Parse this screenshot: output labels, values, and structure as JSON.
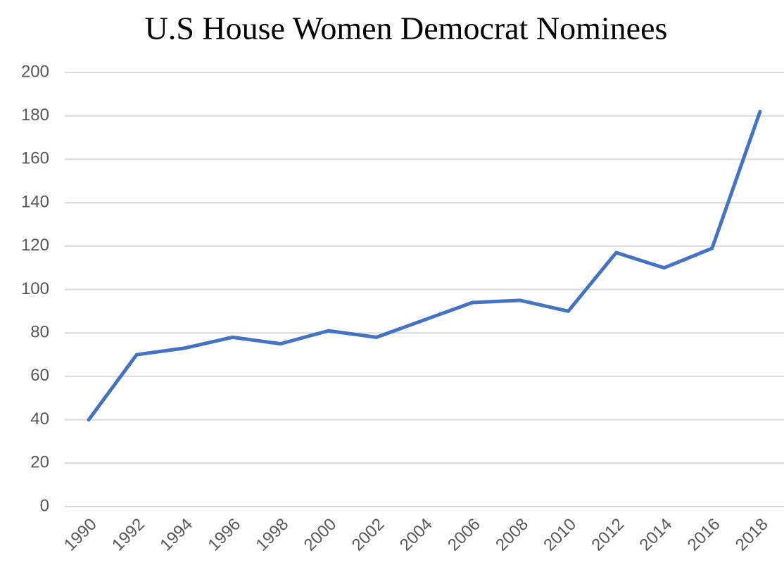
{
  "chart_data": {
    "type": "line",
    "title": "U.S House Women Democrat Nominees",
    "categories": [
      "1990",
      "1992",
      "1994",
      "1996",
      "1998",
      "2000",
      "2002",
      "2004",
      "2006",
      "2008",
      "2010",
      "2012",
      "2014",
      "2016",
      "2018"
    ],
    "series": [
      {
        "name": "Nominees",
        "color": "#4472c4",
        "values": [
          40,
          70,
          73,
          78,
          75,
          81,
          78,
          86,
          94,
          95,
          90,
          117,
          110,
          119,
          182
        ]
      }
    ],
    "ylim": [
      0,
      200
    ],
    "yticks": [
      0,
      20,
      40,
      60,
      80,
      100,
      120,
      140,
      160,
      180,
      200
    ],
    "grid": true
  }
}
